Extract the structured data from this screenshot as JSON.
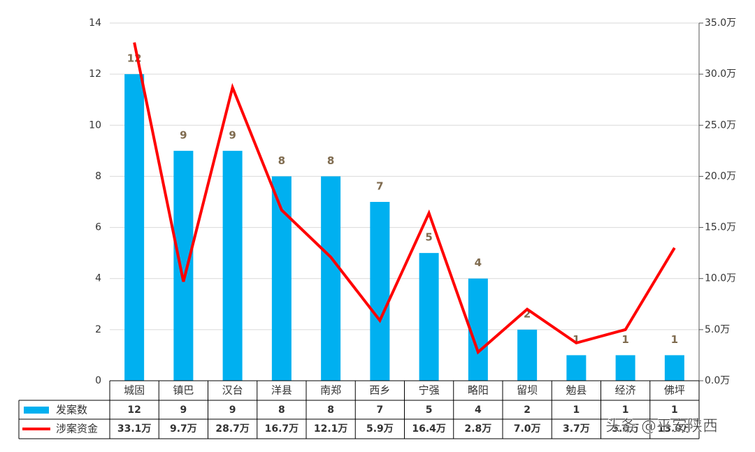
{
  "chart_data": {
    "type": "bar",
    "categories": [
      "城固",
      "镇巴",
      "汉台",
      "洋县",
      "南郑",
      "西乡",
      "宁强",
      "略阳",
      "留坝",
      "勉县",
      "经济",
      "佛坪"
    ],
    "series": [
      {
        "name": "发案数",
        "type": "bar",
        "color": "#00b0f0",
        "values": [
          12,
          9,
          9,
          8,
          8,
          7,
          5,
          4,
          2,
          1,
          1,
          1
        ]
      },
      {
        "name": "涉案资金",
        "type": "line",
        "axis": "y2",
        "color": "#ff0000",
        "values": [
          33.1,
          9.7,
          28.7,
          16.7,
          12.1,
          5.9,
          16.4,
          2.8,
          7.0,
          3.7,
          5.0,
          13.0
        ],
        "value_labels": [
          "33.1万",
          "9.7万",
          "28.7万",
          "16.7万",
          "12.1万",
          "5.9万",
          "16.4万",
          "2.8万",
          "7.0万",
          "3.7万",
          "5.0万",
          "13.0万"
        ]
      }
    ],
    "ylim": [
      0,
      14
    ],
    "yticks": [
      0,
      2,
      4,
      6,
      8,
      10,
      12,
      14
    ],
    "y2lim": [
      0,
      35
    ],
    "y2ticks": [
      {
        "value": 0,
        "label": "0.0万"
      },
      {
        "value": 5,
        "label": "5.0万"
      },
      {
        "value": 10,
        "label": "10.0万"
      },
      {
        "value": 15,
        "label": "15.0万"
      },
      {
        "value": 20,
        "label": "20.0万"
      },
      {
        "value": 25,
        "label": "25.0万"
      },
      {
        "value": 30,
        "label": "30.0万"
      },
      {
        "value": 35,
        "label": "35.0万"
      }
    ],
    "grid": true
  },
  "watermark": "头条 @平安陕西"
}
